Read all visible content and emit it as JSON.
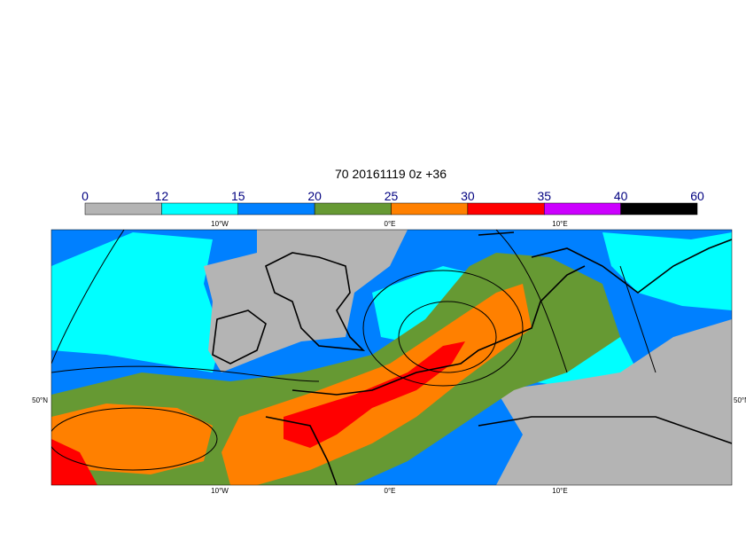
{
  "title": "70 20161119 0z +36",
  "colorbar": {
    "levels": [
      0,
      12,
      15,
      20,
      25,
      30,
      35,
      40,
      60
    ],
    "colors": [
      "#b4b4b4",
      "#00ffff",
      "#0080ff",
      "#669933",
      "#ff8000",
      "#ff0000",
      "#cc00ff",
      "#000000"
    ]
  },
  "map": {
    "lon_labels": [
      "10°W",
      "0°E",
      "10°E"
    ],
    "lat_labels": [
      "50°N"
    ]
  }
}
